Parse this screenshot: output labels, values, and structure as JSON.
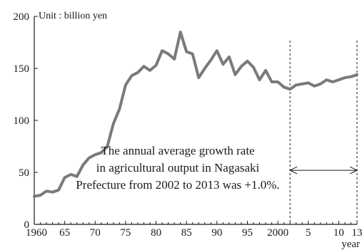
{
  "chart_data": {
    "type": "line",
    "unit_label": "Unit : billion yen",
    "xlabel": "year",
    "ylabel": "",
    "ylim": [
      0,
      200
    ],
    "xlim": [
      1960,
      2013
    ],
    "y_ticks": [
      0,
      50,
      100,
      150,
      200
    ],
    "x_ticks": [
      {
        "value": 1960,
        "label": "1960"
      },
      {
        "value": 1965,
        "label": "65"
      },
      {
        "value": 1970,
        "label": "70"
      },
      {
        "value": 1975,
        "label": "75"
      },
      {
        "value": 1980,
        "label": "80"
      },
      {
        "value": 1985,
        "label": "85"
      },
      {
        "value": 1990,
        "label": "90"
      },
      {
        "value": 1995,
        "label": "95"
      },
      {
        "value": 2000,
        "label": "2000"
      },
      {
        "value": 2005,
        "label": "5"
      },
      {
        "value": 2010,
        "label": "10"
      },
      {
        "value": 2013,
        "label": "13"
      }
    ],
    "grid": false,
    "line_color": "#7a7a7a",
    "series": [
      {
        "x": [
          1960,
          1961,
          1962,
          1963,
          1964,
          1965,
          1966,
          1967,
          1968,
          1969,
          1970,
          1971,
          1972,
          1973,
          1974,
          1975,
          1976,
          1977,
          1978,
          1979,
          1980,
          1981,
          1982,
          1983,
          1984,
          1985,
          1986,
          1987,
          1988,
          1989,
          1990,
          1991,
          1992,
          1993,
          1994,
          1995,
          1996,
          1997,
          1998,
          1999,
          2000,
          2001,
          2002,
          2003,
          2004,
          2005,
          2006,
          2007,
          2008,
          2009,
          2010,
          2011,
          2012,
          2013
        ],
        "values": [
          27,
          28,
          32,
          31,
          33,
          45,
          48,
          46,
          57,
          64,
          67,
          69,
          75,
          97,
          111,
          134,
          143,
          146,
          152,
          148,
          153,
          167,
          164,
          159,
          185,
          166,
          164,
          141,
          150,
          158,
          167,
          154,
          161,
          144,
          152,
          157,
          151,
          139,
          148,
          137,
          137,
          132,
          130,
          134,
          135,
          136,
          133,
          135,
          139,
          137,
          139,
          141,
          142,
          144
        ]
      }
    ],
    "annotations": {
      "period_start": 2002,
      "period_end": 2013,
      "arrow_value": 52,
      "note_lines": [
        "The annual average growth rate",
        "in agricultural output in Nagasaki",
        "Prefecture from 2002 to 2013 was +1.0%."
      ]
    }
  }
}
